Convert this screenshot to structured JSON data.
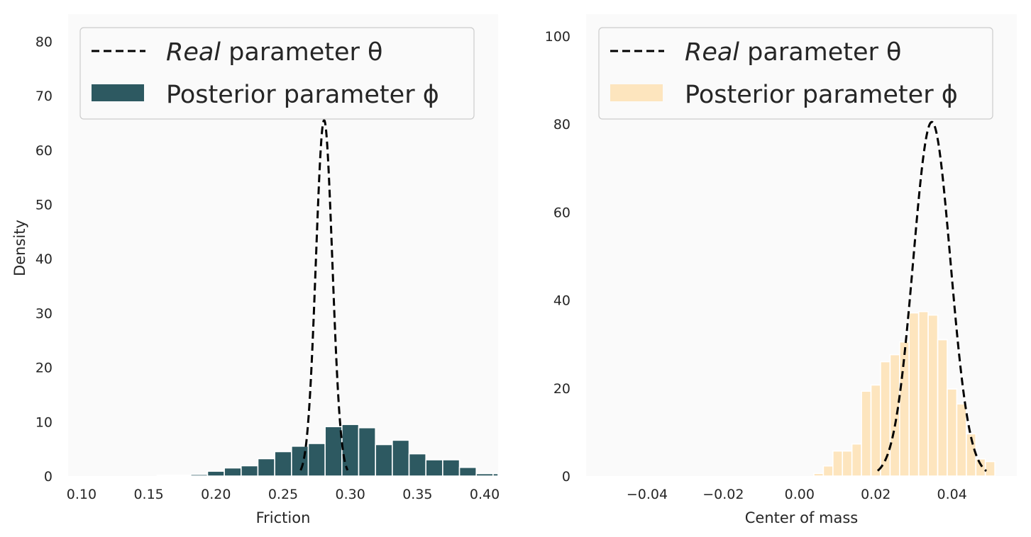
{
  "legend": {
    "real_prefix": "Real",
    "real_suffix": " parameter θ",
    "posterior": "Posterior parameter ϕ"
  },
  "chart_data": [
    {
      "type": "bar",
      "xlabel": "Friction",
      "ylabel": "Density",
      "xlim": [
        0.09,
        0.41
      ],
      "ylim": [
        0,
        85
      ],
      "xticks": [
        "0.10",
        "0.15",
        "0.20",
        "0.25",
        "0.30",
        "0.35",
        "0.40"
      ],
      "yticks": [
        "0",
        "10",
        "20",
        "30",
        "40",
        "50",
        "60",
        "70",
        "80"
      ],
      "legend_position": "top-left",
      "grid": false,
      "bar_color": "#2d5961",
      "bin_width": 0.0125,
      "histogram": [
        {
          "x": 0.1625,
          "y": 0.15
        },
        {
          "x": 0.175,
          "y": 0.15
        },
        {
          "x": 0.1875,
          "y": 0.3
        },
        {
          "x": 0.2,
          "y": 0.9
        },
        {
          "x": 0.2125,
          "y": 1.5
        },
        {
          "x": 0.225,
          "y": 1.9
        },
        {
          "x": 0.2375,
          "y": 3.2
        },
        {
          "x": 0.25,
          "y": 4.5
        },
        {
          "x": 0.2625,
          "y": 5.5
        },
        {
          "x": 0.275,
          "y": 6.0
        },
        {
          "x": 0.2875,
          "y": 9.1
        },
        {
          "x": 0.3,
          "y": 9.5
        },
        {
          "x": 0.3125,
          "y": 8.9
        },
        {
          "x": 0.325,
          "y": 5.8
        },
        {
          "x": 0.3375,
          "y": 6.6
        },
        {
          "x": 0.35,
          "y": 4.1
        },
        {
          "x": 0.3625,
          "y": 3.0
        },
        {
          "x": 0.375,
          "y": 3.0
        },
        {
          "x": 0.3875,
          "y": 1.6
        },
        {
          "x": 0.4,
          "y": 0.45
        },
        {
          "x": 0.4125,
          "y": 0.45
        }
      ],
      "real_curve": {
        "mean": 0.2805,
        "sd": 0.0061,
        "xmin": 0.263,
        "xmax": 0.298,
        "peak": 65.5
      }
    },
    {
      "type": "bar",
      "xlabel": "Center of mass",
      "ylabel": "",
      "xlim": [
        -0.056,
        0.057
      ],
      "ylim": [
        0,
        105
      ],
      "xticks": [
        "−0.04",
        "−0.02",
        "0.00",
        "0.02",
        "0.04"
      ],
      "yticks": [
        "0",
        "20",
        "40",
        "60",
        "80",
        "100"
      ],
      "legend_position": "top-left",
      "grid": false,
      "bar_color": "#fde5be",
      "bin_width": 0.0025,
      "histogram": [
        {
          "x": 0.005,
          "y": 0.6
        },
        {
          "x": 0.0075,
          "y": 2.3
        },
        {
          "x": 0.01,
          "y": 5.7
        },
        {
          "x": 0.0125,
          "y": 5.7
        },
        {
          "x": 0.015,
          "y": 7.3
        },
        {
          "x": 0.0175,
          "y": 19.3
        },
        {
          "x": 0.02,
          "y": 20.7
        },
        {
          "x": 0.0225,
          "y": 26.0
        },
        {
          "x": 0.025,
          "y": 27.6
        },
        {
          "x": 0.0275,
          "y": 30.5
        },
        {
          "x": 0.03,
          "y": 37.1
        },
        {
          "x": 0.0325,
          "y": 37.4
        },
        {
          "x": 0.035,
          "y": 36.6
        },
        {
          "x": 0.0375,
          "y": 31.0
        },
        {
          "x": 0.04,
          "y": 19.8
        },
        {
          "x": 0.0425,
          "y": 16.4
        },
        {
          "x": 0.045,
          "y": 9.6
        },
        {
          "x": 0.0475,
          "y": 3.9
        },
        {
          "x": 0.05,
          "y": 3.3
        }
      ],
      "real_curve": {
        "mean": 0.0347,
        "sd": 0.0049,
        "xmin": 0.0205,
        "xmax": 0.049,
        "peak": 80.5
      }
    }
  ]
}
